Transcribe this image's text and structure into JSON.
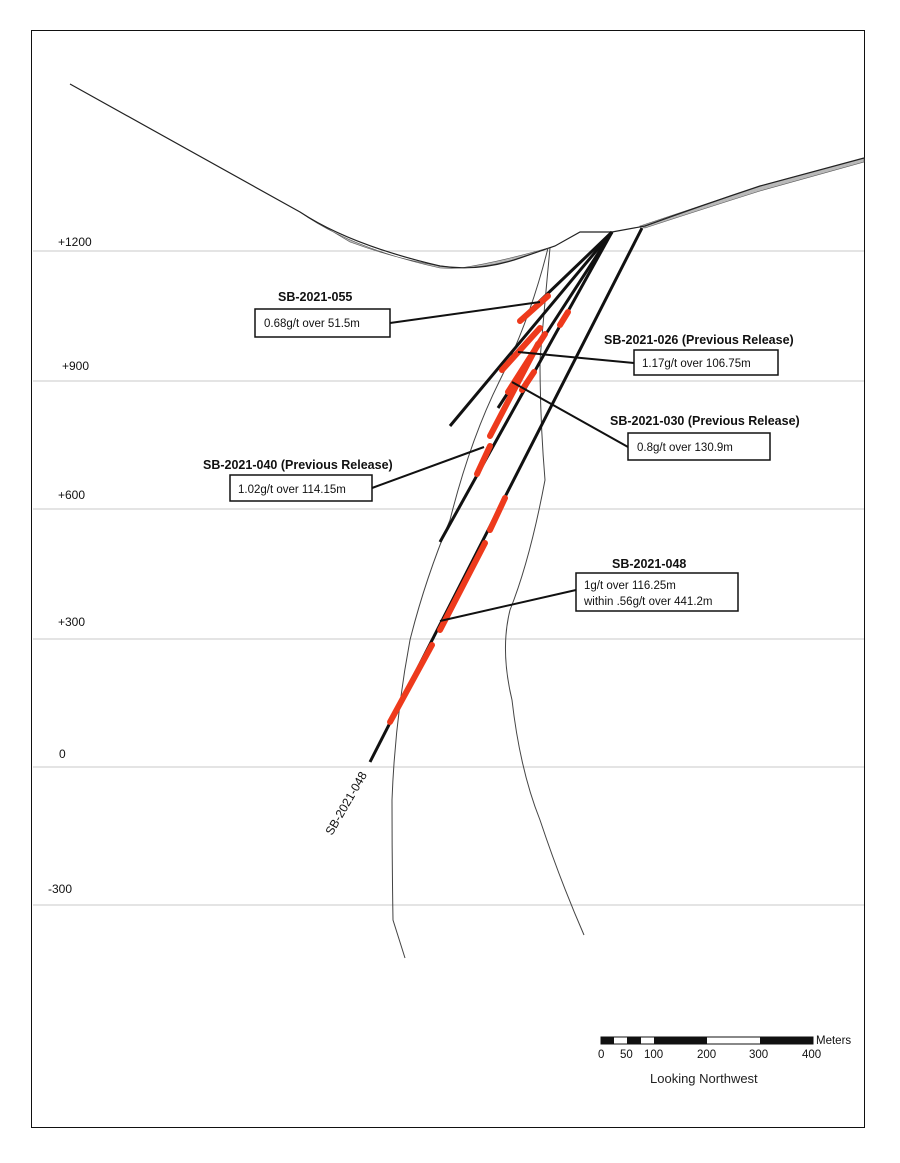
{
  "section": {
    "elevation_labels": [
      "+1200",
      "+900",
      "+600",
      "+300",
      "0",
      "-300"
    ],
    "view_direction": "Looking Northwest",
    "scale_bar": {
      "unit": "Meters",
      "tick_labels": [
        "0",
        "50",
        "100",
        "200",
        "300",
        "400"
      ]
    }
  },
  "drill_holes": [
    {
      "id": "SB-2021-055",
      "intercepts": [
        "0.68g/t over 51.5m"
      ]
    },
    {
      "id": "SB-2021-026 (Previous Release)",
      "intercepts": [
        "1.17g/t over 106.75m"
      ]
    },
    {
      "id": "SB-2021-030 (Previous Release)",
      "intercepts": [
        "0.8g/t over 130.9m"
      ]
    },
    {
      "id": "SB-2021-040 (Previous Release)",
      "intercepts": [
        "1.02g/t over 114.15m"
      ]
    },
    {
      "id": "SB-2021-048",
      "intercepts": [
        "1g/t over 116.25m",
        "within .56g/t over 441.2m"
      ]
    }
  ],
  "trace_label": "SB-2021-048",
  "colors": {
    "mineralized_interval": "#ee3a1c",
    "drill_trace": "#111111",
    "grid_line": "#c8c8c8",
    "topo_fill": "#b9b9b9"
  }
}
